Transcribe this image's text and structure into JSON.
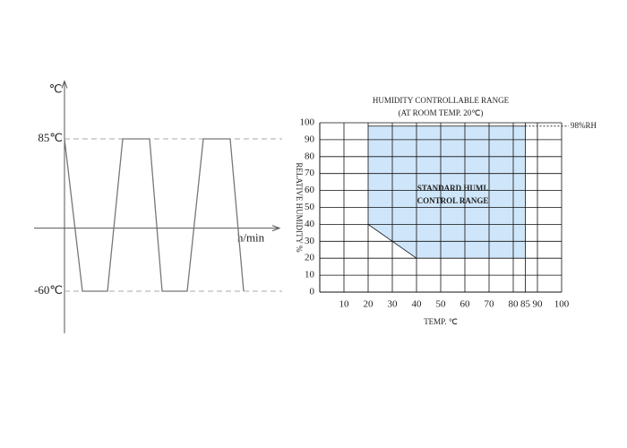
{
  "chart_data": [
    {
      "type": "line",
      "ylabel": "℃",
      "xlabel": "h/min",
      "x": [
        34,
        54,
        82,
        99,
        129,
        143,
        171,
        189,
        219,
        234
      ],
      "y": [
        85,
        -60,
        -60,
        85,
        85,
        -60,
        -60,
        85,
        85,
        -60
      ],
      "color": "#777777",
      "xlim": [
        0,
        280
      ],
      "ylim": [
        -100,
        140
      ],
      "yticks": [
        {
          "value": 85,
          "label": "85℃"
        },
        {
          "value": -60,
          "label": "-60℃"
        }
      ]
    },
    {
      "type": "area",
      "title": [
        "HUMIDITY CONTROLLABLE RANGE",
        "(AT ROOM TEMP. 20℃)"
      ],
      "xlabel": "TEMP. ℃",
      "ylabel": "RELATIVE HUMIDITY %",
      "region": {
        "label": [
          "STANDARD HUMI.",
          "CONTROL RANGE"
        ],
        "x": [
          20,
          85,
          85,
          40,
          20
        ],
        "y": [
          98,
          98,
          20,
          20,
          40
        ],
        "color": "#cfe6fa"
      },
      "annotation": {
        "value": 98,
        "label": "98%RH"
      },
      "xlim": [
        0,
        100
      ],
      "ylim": [
        0,
        100
      ],
      "xticks": [
        10,
        20,
        30,
        40,
        50,
        60,
        70,
        80,
        85,
        90,
        100
      ],
      "yticks": [
        0,
        10,
        20,
        30,
        40,
        50,
        60,
        70,
        80,
        90,
        100
      ],
      "grid": true
    }
  ]
}
